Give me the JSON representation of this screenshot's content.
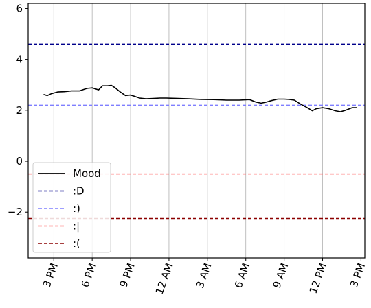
{
  "chart_data": {
    "type": "line",
    "title": "",
    "xlabel": "",
    "ylabel": "",
    "grid": {
      "x": true,
      "y": false
    },
    "legend_position": "lower-left",
    "x_axis": {
      "unit": "hours since 12 PM of day 1",
      "ticks": [
        {
          "value": 3,
          "label": "3 PM"
        },
        {
          "value": 6,
          "label": "6 PM"
        },
        {
          "value": 9,
          "label": "9 PM"
        },
        {
          "value": 12,
          "label": "12 AM"
        },
        {
          "value": 15,
          "label": "3 AM"
        },
        {
          "value": 18,
          "label": "6 AM"
        },
        {
          "value": 21,
          "label": "9 AM"
        },
        {
          "value": 24,
          "label": "12 PM"
        },
        {
          "value": 27,
          "label": "3 PM"
        }
      ],
      "xlim": [
        1.0,
        27.3
      ]
    },
    "y_axis": {
      "ticks": [
        {
          "value": -2,
          "label": "−2"
        },
        {
          "value": 0,
          "label": "0"
        },
        {
          "value": 2,
          "label": "2"
        },
        {
          "value": 4,
          "label": "4"
        },
        {
          "value": 6,
          "label": "6"
        }
      ],
      "ylim": [
        -3.8,
        6.2
      ]
    },
    "series": [
      {
        "name": "Mood",
        "color": "#000000",
        "style": "solid",
        "x": [
          2.2,
          2.5,
          2.8,
          3.3,
          3.8,
          4.4,
          5.0,
          5.6,
          6.0,
          6.5,
          6.8,
          7.2,
          7.5,
          7.8,
          8.2,
          8.6,
          9.0,
          9.3,
          9.7,
          10.2,
          10.5,
          10.9,
          11.3,
          11.8,
          12.5,
          13.5,
          14.5,
          15.5,
          16.5,
          17.5,
          18.3,
          18.8,
          19.2,
          19.6,
          20.0,
          20.5,
          21.0,
          21.4,
          21.8,
          22.3,
          22.8,
          23.2,
          23.5,
          24.0,
          24.5,
          25.0,
          25.4,
          25.8,
          26.3,
          26.7
        ],
        "y": [
          2.62,
          2.58,
          2.65,
          2.72,
          2.73,
          2.76,
          2.76,
          2.86,
          2.88,
          2.8,
          2.96,
          2.96,
          2.98,
          2.88,
          2.72,
          2.58,
          2.6,
          2.55,
          2.48,
          2.45,
          2.46,
          2.47,
          2.48,
          2.48,
          2.47,
          2.45,
          2.43,
          2.42,
          2.4,
          2.4,
          2.42,
          2.32,
          2.28,
          2.32,
          2.38,
          2.44,
          2.44,
          2.43,
          2.4,
          2.24,
          2.1,
          1.98,
          2.06,
          2.1,
          2.06,
          1.98,
          1.94,
          2.0,
          2.1,
          2.1
        ]
      },
      {
        "name": ":D",
        "color": "#00008b",
        "style": "dashed",
        "y": 4.6
      },
      {
        "name": ":)",
        "color": "#7f7fff",
        "style": "dashed",
        "y": 2.2
      },
      {
        "name": ":|",
        "color": "#ff6f6f",
        "style": "dashed",
        "y": -0.5
      },
      {
        "name": ":(",
        "color": "#8b0000",
        "style": "dashed",
        "y": -2.25
      }
    ]
  }
}
